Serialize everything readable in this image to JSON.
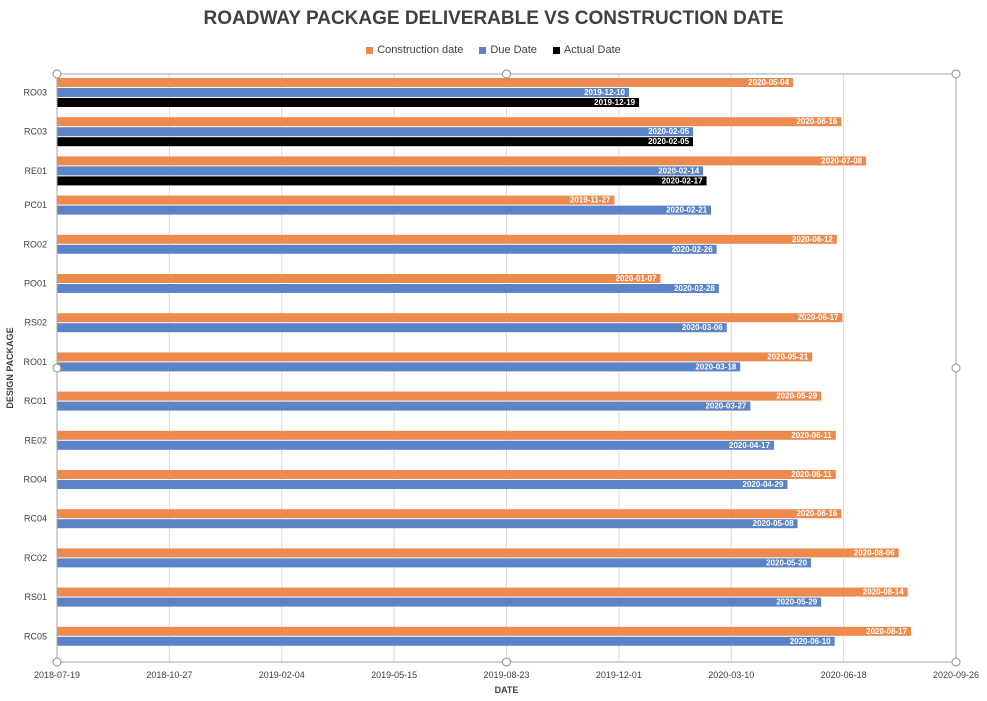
{
  "chart_data": {
    "type": "bar",
    "orientation": "horizontal",
    "title": "ROADWAY PACKAGE DELIVERABLE VS CONSTRUCTION DATE",
    "xlabel": "DATE",
    "ylabel": "DESIGN PACKAGE",
    "xlim": [
      "2018-07-19",
      "2020-09-26"
    ],
    "x_ticks": [
      "2018-07-19",
      "2018-10-27",
      "2019-02-04",
      "2019-05-15",
      "2019-08-23",
      "2019-12-01",
      "2020-03-10",
      "2020-06-18",
      "2020-09-26"
    ],
    "grid": true,
    "legend_position": "top",
    "categories": [
      "RO03",
      "RC03",
      "RE01",
      "PC01",
      "RO02",
      "PO01",
      "RS02",
      "RO01",
      "RC01",
      "RE02",
      "RO04",
      "RC04",
      "RC02",
      "RS01",
      "RC05"
    ],
    "series": [
      {
        "name": "Construction date",
        "color": "#ED8B4F",
        "values": [
          "2020-05-04",
          "2020-06-16",
          "2020-07-08",
          "2019-11-27",
          "2020-06-12",
          "2020-01-07",
          "2020-06-17",
          "2020-05-21",
          "2020-05-29",
          "2020-06-11",
          "2020-06-11",
          "2020-06-16",
          "2020-08-06",
          "2020-08-14",
          "2020-08-17"
        ]
      },
      {
        "name": "Due Date",
        "color": "#5B84C8",
        "values": [
          "2019-12-10",
          "2020-02-05",
          "2020-02-14",
          "2020-02-21",
          "2020-02-26",
          "2020-02-28",
          "2020-03-06",
          "2020-03-18",
          "2020-03-27",
          "2020-04-17",
          "2020-04-29",
          "2020-05-08",
          "2020-05-20",
          "2020-05-29",
          "2020-06-10"
        ]
      },
      {
        "name": "Actual Date",
        "color": "#000000",
        "values": [
          "2019-12-19",
          "2020-02-05",
          "2020-02-17",
          null,
          null,
          null,
          null,
          null,
          null,
          null,
          null,
          null,
          null,
          null,
          null
        ]
      }
    ]
  }
}
